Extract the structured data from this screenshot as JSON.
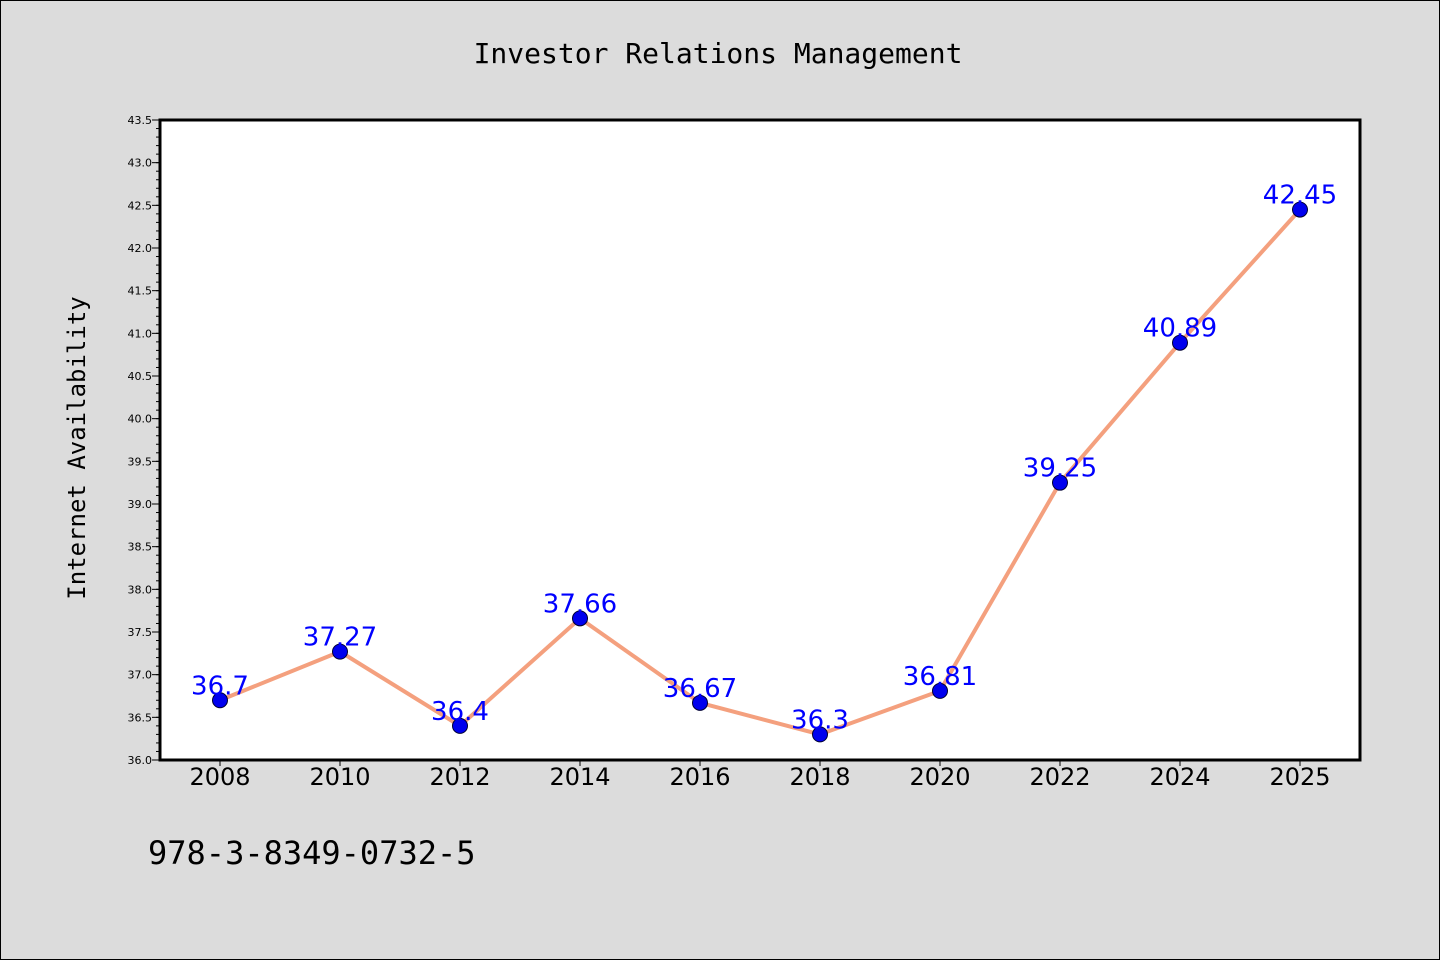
{
  "chart_data": {
    "type": "line",
    "title": "Investor Relations Management",
    "xlabel": "",
    "ylabel": "Internet Availability",
    "categories": [
      "2008",
      "2010",
      "2012",
      "2014",
      "2016",
      "2018",
      "2020",
      "2022",
      "2024",
      "2025"
    ],
    "series": [
      {
        "values": [
          36.7,
          37.27,
          36.4,
          37.66,
          36.67,
          36.3,
          36.81,
          39.25,
          40.89,
          42.45
        ],
        "labels": [
          "36.7",
          "37.27",
          "36.4",
          "37.66",
          "36.67",
          "36.3",
          "36.81",
          "39.25",
          "40.89",
          "42.45"
        ]
      }
    ],
    "ylim": [
      36.0,
      43.5
    ],
    "yticks": [
      "36.0",
      "36.5",
      "37.0",
      "37.5",
      "38.0",
      "38.5",
      "39.0",
      "39.5",
      "40.0",
      "40.5",
      "41.0",
      "41.5",
      "42.0",
      "42.5",
      "43.0",
      "43.5"
    ],
    "grid": false,
    "legend": "none",
    "colors": {
      "line": "#f4a07e",
      "marker": "#0000ee",
      "marker_edge": "#000033",
      "label": "#0000ff",
      "background": "#dcdcdc",
      "plot_background": "#ffffff"
    }
  },
  "footer_text": "978-3-8349-0732-5"
}
